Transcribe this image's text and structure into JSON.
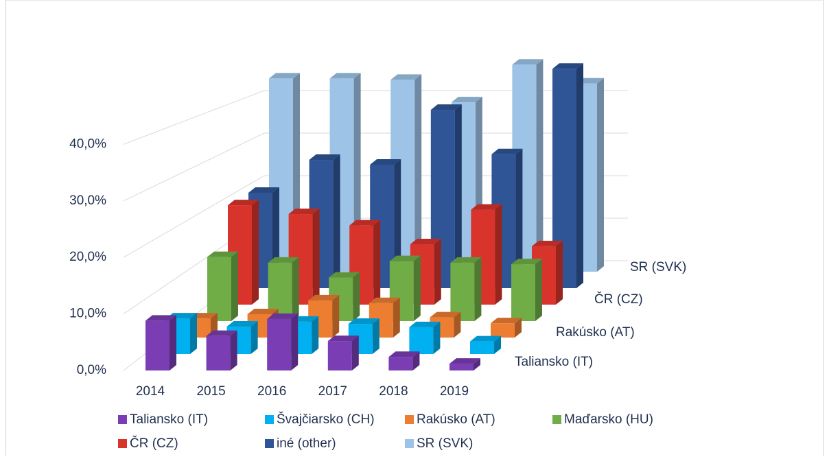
{
  "chart_data": {
    "type": "bar3d",
    "categories": [
      "2014",
      "2015",
      "2016",
      "2017",
      "2018",
      "2019"
    ],
    "series": [
      {
        "name": "Taliansko (IT)",
        "color": "#7a3db3",
        "values": [
          8.8,
          6.1,
          9.1,
          5.2,
          2.4,
          1.2
        ]
      },
      {
        "name": "Švajčiarsko (CH)",
        "color": "#00b0f0",
        "values": [
          6.5,
          5.0,
          5.9,
          5.5,
          4.9,
          2.3
        ]
      },
      {
        "name": "Rakúsko (AT)",
        "color": "#ed7d31",
        "values": [
          3.6,
          4.4,
          7.0,
          6.5,
          3.8,
          2.7
        ]
      },
      {
        "name": "Maďarsko (HU)",
        "color": "#70ad47",
        "values": [
          12.5,
          11.4,
          8.5,
          11.7,
          11.4,
          11.1
        ]
      },
      {
        "name": "ČR (CZ)",
        "color": "#d9342b",
        "values": [
          20.1,
          18.3,
          16.0,
          12.2,
          19.2,
          11.8
        ]
      },
      {
        "name": "iné (other)",
        "color": "#2f5597",
        "values": [
          20.0,
          26.9,
          25.9,
          37.4,
          28.1,
          46.0
        ]
      },
      {
        "name": "SR (SVK)",
        "color": "#9dc3e6",
        "values": [
          42.1,
          42.1,
          41.8,
          36.9,
          45.1,
          41.0
        ]
      }
    ],
    "ylim": [
      0,
      50
    ],
    "yticks": [
      {
        "value": 0,
        "label": "0,0%"
      },
      {
        "value": 10,
        "label": "10,0%"
      },
      {
        "value": 20,
        "label": "20,0%"
      },
      {
        "value": 30,
        "label": "30,0%"
      },
      {
        "value": 40,
        "label": "40,0%"
      }
    ],
    "grid": true,
    "legend": "bottom"
  }
}
